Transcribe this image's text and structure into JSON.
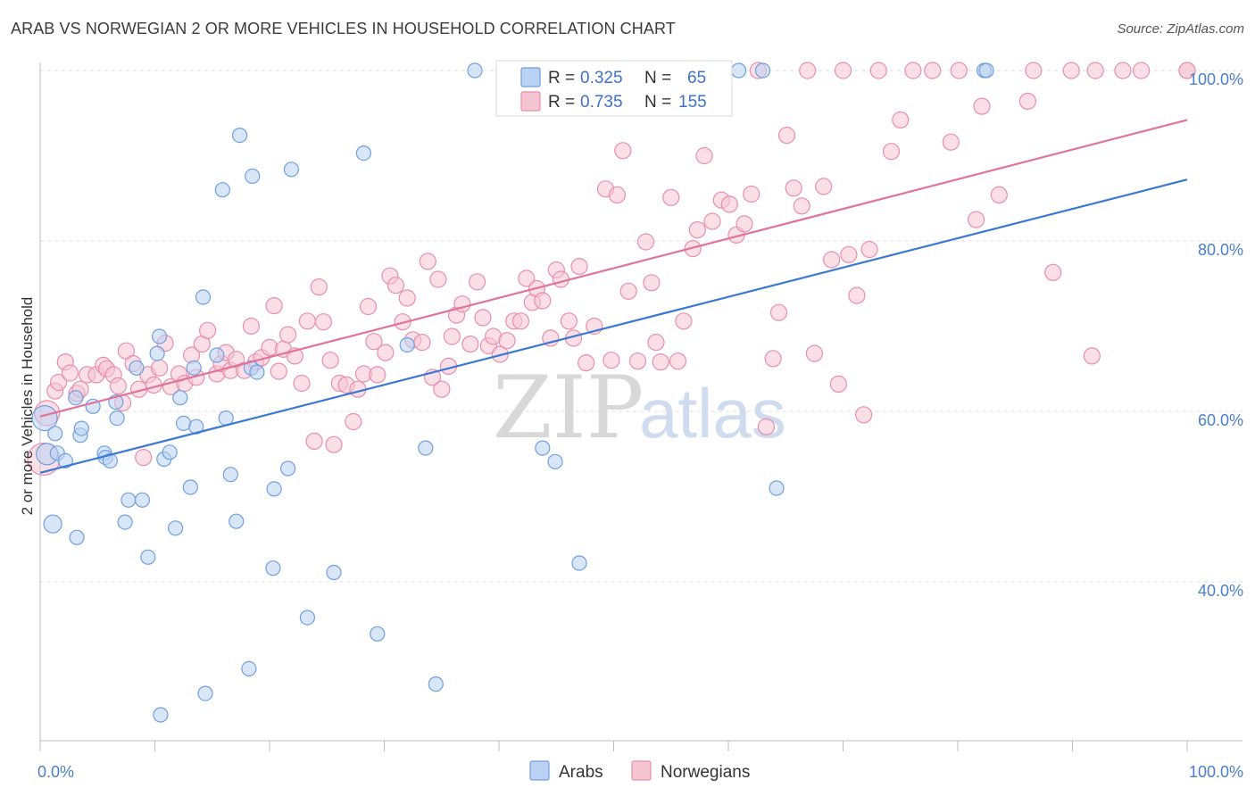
{
  "header": {
    "title": "ARAB VS NORWEGIAN 2 OR MORE VEHICLES IN HOUSEHOLD CORRELATION CHART",
    "source": "Source: ZipAtlas.com"
  },
  "colors": {
    "arabs": "#6fa0e0",
    "arabs_fill": "#b9d1f3",
    "arabs_line": "#3a78d4",
    "norwegians": "#e88fab",
    "norwegians_fill": "#f6c5d4",
    "norwegians_line": "#e07399",
    "tick_label": "#4a7fcf"
  },
  "legend": {
    "row1": {
      "r_label": "R = ",
      "r_value": "0.325",
      "n_label": "N = ",
      "n_value": "65"
    },
    "row2": {
      "r_label": "R = ",
      "r_value": "0.735",
      "n_label": "N = ",
      "n_value": "155"
    }
  },
  "watermark": {
    "part1": "ZIP",
    "part2": "atlas"
  },
  "chart_data": {
    "type": "scatter",
    "title": "ARAB VS NORWEGIAN 2 OR MORE VEHICLES IN HOUSEHOLD CORRELATION CHART",
    "xlabel": "",
    "ylabel": "2 or more Vehicles in Household",
    "xlim": [
      0,
      100
    ],
    "ylim": [
      20,
      102
    ],
    "x_tick_labels": [
      "0.0%",
      "100.0%"
    ],
    "y_ticks": [
      {
        "value": 40,
        "label": "40.0%"
      },
      {
        "value": 60,
        "label": "60.0%"
      },
      {
        "value": 80,
        "label": "80.0%"
      },
      {
        "value": 100,
        "label": "100.0%"
      }
    ],
    "grid": true,
    "legend_position": "top-center",
    "series": [
      {
        "name": "Arabs",
        "r": 0.325,
        "n": 65,
        "trend": {
          "x": [
            0,
            100
          ],
          "y": [
            52.8,
            87.2
          ]
        },
        "points": [
          [
            0.4,
            59.2,
            14
          ],
          [
            0.6,
            55.0,
            12
          ],
          [
            1.1,
            46.8,
            10
          ],
          [
            1.3,
            57.4,
            8
          ],
          [
            1.5,
            55.1,
            8
          ],
          [
            2.2,
            54.2,
            8
          ],
          [
            3.1,
            61.6,
            8
          ],
          [
            3.2,
            45.2,
            8
          ],
          [
            3.5,
            57.2,
            8
          ],
          [
            3.6,
            58.0,
            8
          ],
          [
            4.6,
            60.6,
            8
          ],
          [
            5.6,
            55.1,
            8
          ],
          [
            5.7,
            54.6,
            8
          ],
          [
            6.1,
            54.2,
            8
          ],
          [
            6.6,
            61.1,
            8
          ],
          [
            6.7,
            59.2,
            8
          ],
          [
            7.4,
            47.0,
            8
          ],
          [
            7.7,
            49.6,
            8
          ],
          [
            8.4,
            65.1,
            8
          ],
          [
            8.9,
            49.6,
            8
          ],
          [
            9.4,
            42.9,
            8
          ],
          [
            10.2,
            66.8,
            8
          ],
          [
            10.4,
            68.8,
            8
          ],
          [
            10.5,
            24.4,
            8
          ],
          [
            10.8,
            54.4,
            8
          ],
          [
            11.3,
            55.2,
            8
          ],
          [
            11.8,
            46.3,
            8
          ],
          [
            12.2,
            61.6,
            8
          ],
          [
            12.5,
            58.6,
            8
          ],
          [
            13.1,
            51.1,
            8
          ],
          [
            13.4,
            65.1,
            8
          ],
          [
            13.6,
            58.2,
            8
          ],
          [
            14.2,
            73.4,
            8
          ],
          [
            14.4,
            26.9,
            8
          ],
          [
            15.4,
            66.6,
            8
          ],
          [
            15.9,
            86.0,
            8
          ],
          [
            16.2,
            59.2,
            8
          ],
          [
            16.6,
            52.6,
            8
          ],
          [
            17.1,
            47.1,
            8
          ],
          [
            17.4,
            92.4,
            8
          ],
          [
            18.2,
            29.8,
            8
          ],
          [
            18.4,
            65.1,
            8
          ],
          [
            18.5,
            87.6,
            8
          ],
          [
            18.9,
            64.6,
            8
          ],
          [
            20.3,
            41.6,
            8
          ],
          [
            20.4,
            50.9,
            8
          ],
          [
            21.6,
            53.3,
            8
          ],
          [
            21.9,
            88.4,
            8
          ],
          [
            23.3,
            35.8,
            8
          ],
          [
            25.6,
            41.1,
            8
          ],
          [
            28.2,
            90.3,
            8
          ],
          [
            29.4,
            33.9,
            8
          ],
          [
            32.0,
            67.8,
            8
          ],
          [
            33.6,
            55.7,
            8
          ],
          [
            34.5,
            28.0,
            8
          ],
          [
            37.9,
            100.0,
            8
          ],
          [
            43.8,
            55.7,
            8
          ],
          [
            44.9,
            54.1,
            8
          ],
          [
            47.0,
            42.2,
            8
          ],
          [
            56.1,
            100.0,
            8
          ],
          [
            60.9,
            100.0,
            8
          ],
          [
            63.0,
            100.0,
            8
          ],
          [
            64.2,
            51.0,
            8
          ],
          [
            82.3,
            100.0,
            8
          ],
          [
            82.5,
            100.0,
            8
          ]
        ]
      },
      {
        "name": "Norwegians",
        "r": 0.735,
        "n": 155,
        "trend": {
          "x": [
            0,
            100
          ],
          "y": [
            59.4,
            94.2
          ]
        },
        "points": [
          [
            0.3,
            54.4,
            18
          ],
          [
            0.6,
            59.8,
            14
          ],
          [
            1.3,
            62.4,
            9
          ],
          [
            1.6,
            63.4,
            9
          ],
          [
            2.2,
            65.8,
            9
          ],
          [
            2.6,
            64.5,
            9
          ],
          [
            3.2,
            62.1,
            9
          ],
          [
            3.5,
            62.6,
            9
          ],
          [
            4.1,
            64.3,
            9
          ],
          [
            4.9,
            64.3,
            9
          ],
          [
            5.5,
            65.4,
            9
          ],
          [
            5.8,
            65.0,
            9
          ],
          [
            6.4,
            64.3,
            9
          ],
          [
            6.8,
            63.0,
            9
          ],
          [
            7.2,
            61.0,
            9
          ],
          [
            7.5,
            67.1,
            9
          ],
          [
            8.1,
            65.6,
            9
          ],
          [
            8.6,
            62.6,
            9
          ],
          [
            9.0,
            54.6,
            9
          ],
          [
            9.4,
            64.3,
            9
          ],
          [
            9.9,
            63.1,
            9
          ],
          [
            10.4,
            65.1,
            9
          ],
          [
            10.9,
            68.0,
            9
          ],
          [
            11.4,
            62.9,
            9
          ],
          [
            12.1,
            64.4,
            9
          ],
          [
            12.6,
            63.3,
            9
          ],
          [
            13.2,
            66.6,
            9
          ],
          [
            13.6,
            64.0,
            9
          ],
          [
            14.1,
            67.9,
            9
          ],
          [
            14.6,
            69.5,
            9
          ],
          [
            15.4,
            64.4,
            9
          ],
          [
            15.8,
            65.6,
            9
          ],
          [
            16.2,
            66.9,
            9
          ],
          [
            16.6,
            64.8,
            9
          ],
          [
            17.1,
            66.1,
            9
          ],
          [
            17.8,
            64.8,
            9
          ],
          [
            18.4,
            70.0,
            9
          ],
          [
            18.8,
            65.8,
            9
          ],
          [
            19.3,
            66.3,
            9
          ],
          [
            20.0,
            67.5,
            9
          ],
          [
            20.4,
            72.4,
            9
          ],
          [
            20.8,
            64.7,
            9
          ],
          [
            21.2,
            67.3,
            9
          ],
          [
            21.6,
            69.0,
            9
          ],
          [
            22.2,
            66.5,
            9
          ],
          [
            22.8,
            63.3,
            9
          ],
          [
            23.3,
            70.6,
            9
          ],
          [
            23.9,
            56.5,
            9
          ],
          [
            24.3,
            74.6,
            9
          ],
          [
            24.7,
            70.5,
            9
          ],
          [
            25.3,
            66.0,
            9
          ],
          [
            25.6,
            56.1,
            9
          ],
          [
            26.1,
            63.3,
            9
          ],
          [
            26.7,
            63.1,
            9
          ],
          [
            27.3,
            58.8,
            9
          ],
          [
            27.7,
            62.6,
            9
          ],
          [
            28.2,
            64.4,
            9
          ],
          [
            28.6,
            72.3,
            9
          ],
          [
            29.1,
            68.2,
            9
          ],
          [
            29.4,
            64.3,
            9
          ],
          [
            30.1,
            66.9,
            9
          ],
          [
            30.5,
            75.9,
            9
          ],
          [
            31.0,
            74.8,
            9
          ],
          [
            31.6,
            70.5,
            9
          ],
          [
            32.0,
            73.3,
            9
          ],
          [
            32.5,
            68.4,
            9
          ],
          [
            33.3,
            68.1,
            9
          ],
          [
            33.8,
            77.6,
            9
          ],
          [
            34.2,
            64.0,
            9
          ],
          [
            34.7,
            75.5,
            9
          ],
          [
            35.0,
            62.6,
            9
          ],
          [
            35.6,
            65.3,
            9
          ],
          [
            35.9,
            68.8,
            9
          ],
          [
            36.3,
            71.3,
            9
          ],
          [
            36.8,
            72.6,
            9
          ],
          [
            37.5,
            67.9,
            9
          ],
          [
            38.1,
            75.2,
            9
          ],
          [
            38.6,
            71.0,
            9
          ],
          [
            39.1,
            67.7,
            9
          ],
          [
            39.5,
            68.8,
            9
          ],
          [
            40.1,
            66.7,
            9
          ],
          [
            40.7,
            68.3,
            9
          ],
          [
            41.3,
            70.6,
            9
          ],
          [
            41.9,
            70.6,
            9
          ],
          [
            42.4,
            75.6,
            9
          ],
          [
            42.9,
            72.8,
            9
          ],
          [
            43.3,
            74.4,
            9
          ],
          [
            43.8,
            73.0,
            9
          ],
          [
            44.5,
            68.6,
            9
          ],
          [
            45.0,
            76.6,
            9
          ],
          [
            45.4,
            75.5,
            9
          ],
          [
            46.1,
            70.6,
            9
          ],
          [
            46.5,
            68.6,
            9
          ],
          [
            47.0,
            77.0,
            9
          ],
          [
            47.6,
            65.7,
            9
          ],
          [
            48.3,
            70.0,
            9
          ],
          [
            49.3,
            86.1,
            9
          ],
          [
            49.8,
            66.0,
            9
          ],
          [
            50.3,
            85.4,
            9
          ],
          [
            50.8,
            90.6,
            9
          ],
          [
            51.3,
            74.1,
            9
          ],
          [
            52.1,
            65.9,
            9
          ],
          [
            52.8,
            79.9,
            9
          ],
          [
            53.3,
            75.1,
            9
          ],
          [
            53.7,
            68.1,
            9
          ],
          [
            54.1,
            65.8,
            9
          ],
          [
            55.0,
            85.1,
            9
          ],
          [
            55.6,
            65.9,
            9
          ],
          [
            56.1,
            70.6,
            9
          ],
          [
            56.9,
            79.1,
            9
          ],
          [
            57.3,
            81.3,
            9
          ],
          [
            57.9,
            90.0,
            9
          ],
          [
            58.6,
            82.3,
            9
          ],
          [
            59.4,
            84.8,
            9
          ],
          [
            60.1,
            84.3,
            9
          ],
          [
            60.7,
            80.7,
            9
          ],
          [
            61.4,
            82.0,
            9
          ],
          [
            62.0,
            85.5,
            9
          ],
          [
            62.6,
            100.0,
            9
          ],
          [
            63.3,
            58.2,
            9
          ],
          [
            63.9,
            66.2,
            9
          ],
          [
            64.4,
            71.6,
            9
          ],
          [
            65.1,
            92.4,
            9
          ],
          [
            65.7,
            86.2,
            9
          ],
          [
            66.4,
            84.1,
            9
          ],
          [
            66.9,
            100.0,
            9
          ],
          [
            67.5,
            66.8,
            9
          ],
          [
            68.3,
            86.4,
            9
          ],
          [
            69.0,
            77.8,
            9
          ],
          [
            69.6,
            63.2,
            9
          ],
          [
            70.0,
            100.0,
            9
          ],
          [
            70.5,
            78.4,
            9
          ],
          [
            71.2,
            73.6,
            9
          ],
          [
            71.8,
            59.6,
            9
          ],
          [
            72.3,
            79.0,
            9
          ],
          [
            73.1,
            100.0,
            9
          ],
          [
            74.2,
            90.5,
            9
          ],
          [
            75.0,
            94.2,
            9
          ],
          [
            76.1,
            100.0,
            9
          ],
          [
            77.8,
            100.0,
            9
          ],
          [
            79.4,
            91.6,
            9
          ],
          [
            80.1,
            100.0,
            9
          ],
          [
            81.6,
            82.5,
            9
          ],
          [
            82.1,
            95.8,
            9
          ],
          [
            83.6,
            85.4,
            9
          ],
          [
            86.1,
            96.4,
            9
          ],
          [
            86.6,
            100.0,
            9
          ],
          [
            88.3,
            76.3,
            9
          ],
          [
            89.9,
            100.0,
            9
          ],
          [
            91.7,
            66.5,
            9
          ],
          [
            92.0,
            100.0,
            9
          ],
          [
            94.4,
            100.0,
            9
          ],
          [
            96.0,
            100.0,
            9
          ],
          [
            100.0,
            100.0,
            9
          ],
          [
            100.0,
            100.0,
            9
          ]
        ]
      }
    ]
  }
}
